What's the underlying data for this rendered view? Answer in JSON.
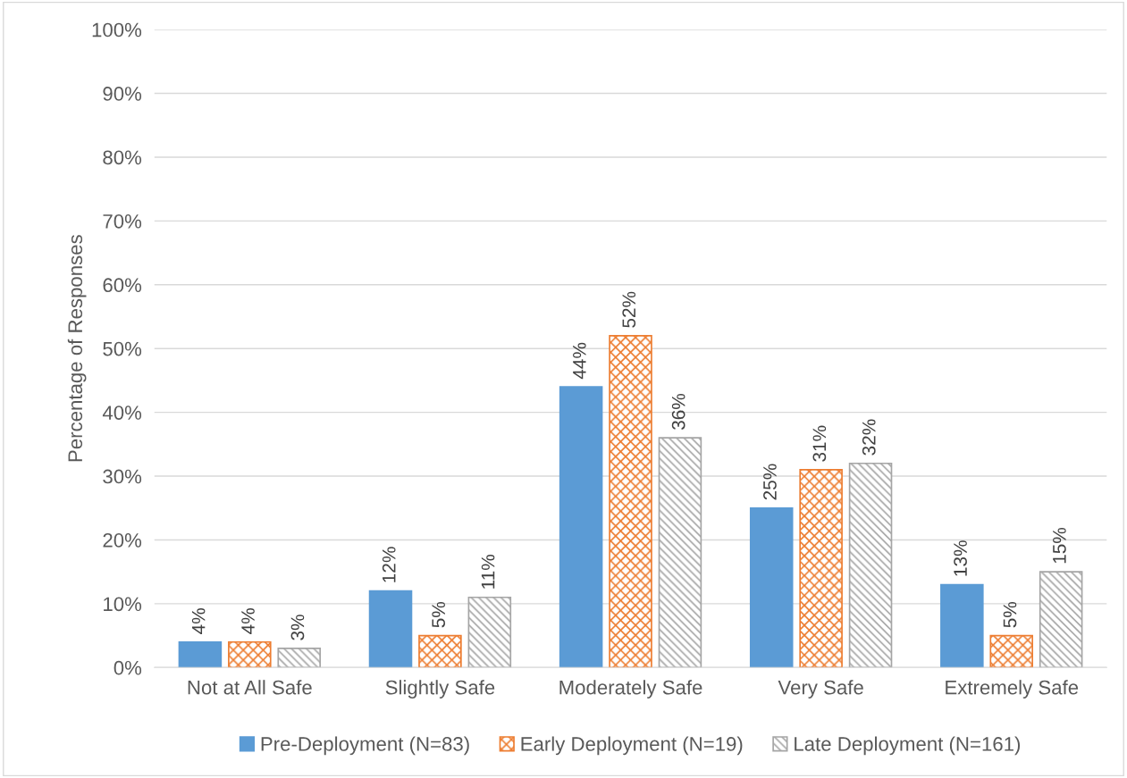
{
  "chart_data": {
    "type": "bar",
    "ylabel": "Percentage of Responses",
    "categories": [
      "Not at All Safe",
      "Slightly Safe",
      "Moderately Safe",
      "Very Safe",
      "Extremely Safe"
    ],
    "series": [
      {
        "name": "Pre-Deployment (N=83)",
        "color": "#5b9bd5",
        "values": [
          4,
          12,
          44,
          25,
          13
        ]
      },
      {
        "name": "Early Deployment (N=19)",
        "color": "#ed7d31",
        "values": [
          4,
          5,
          52,
          31,
          5
        ]
      },
      {
        "name": "Late Deployment (N=161)",
        "color": "#a5a5a5",
        "values": [
          3,
          11,
          36,
          32,
          15
        ]
      }
    ],
    "ylim": [
      0,
      100
    ],
    "yticks": [
      {
        "value": 0,
        "label": "0%"
      },
      {
        "value": 10,
        "label": "10%"
      },
      {
        "value": 20,
        "label": "20%"
      },
      {
        "value": 30,
        "label": "30%"
      },
      {
        "value": 40,
        "label": "40%"
      },
      {
        "value": 50,
        "label": "50%"
      },
      {
        "value": 60,
        "label": "60%"
      },
      {
        "value": 70,
        "label": "70%"
      },
      {
        "value": 80,
        "label": "80%"
      },
      {
        "value": 90,
        "label": "90%"
      },
      {
        "value": 100,
        "label": "100%"
      }
    ],
    "value_labels": [
      [
        "4%",
        "12%",
        "44%",
        "25%",
        "13%"
      ],
      [
        "4%",
        "5%",
        "52%",
        "31%",
        "5%"
      ],
      [
        "3%",
        "11%",
        "36%",
        "32%",
        "15%"
      ]
    ],
    "grid": "y",
    "legend": "bottom"
  }
}
